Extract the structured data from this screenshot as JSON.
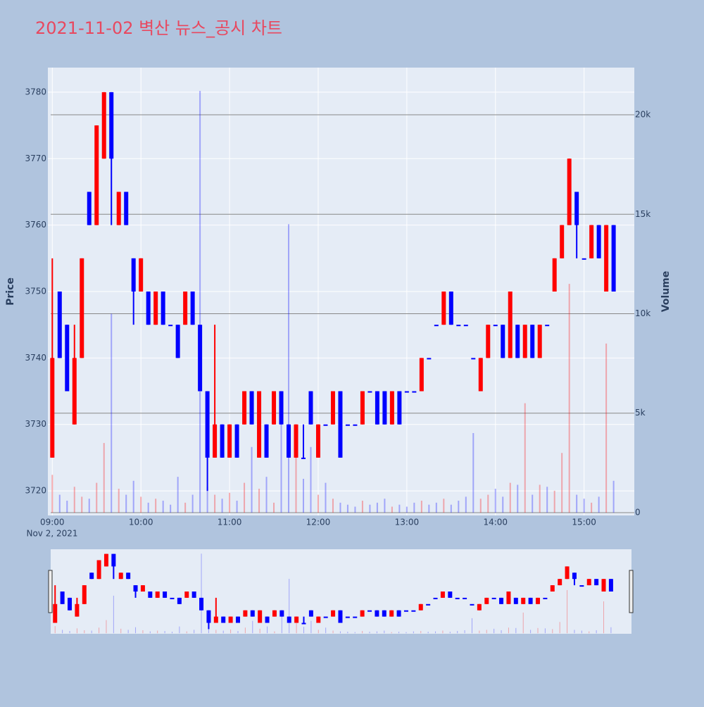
{
  "chart_data": {
    "type": "candlestick",
    "title": "2021-11-02 벽산 뉴스_공시 차트",
    "y_title": "Price",
    "y2_title": "Volume",
    "x_date_label": "Nov 2, 2021",
    "increasing_color": "#ff0000",
    "decreasing_color": "#0000ff",
    "x": [
      "09:00",
      "09:05",
      "09:10",
      "09:15",
      "09:20",
      "09:25",
      "09:30",
      "09:35",
      "09:40",
      "09:45",
      "09:50",
      "09:55",
      "10:00",
      "10:05",
      "10:10",
      "10:15",
      "10:20",
      "10:25",
      "10:30",
      "10:35",
      "10:40",
      "10:45",
      "10:50",
      "10:55",
      "11:00",
      "11:05",
      "11:10",
      "11:15",
      "11:20",
      "11:25",
      "11:30",
      "11:35",
      "11:40",
      "11:45",
      "11:50",
      "11:55",
      "12:00",
      "12:05",
      "12:10",
      "12:15",
      "12:20",
      "12:25",
      "12:30",
      "12:35",
      "12:40",
      "12:45",
      "12:50",
      "12:55",
      "13:00",
      "13:05",
      "13:10",
      "13:15",
      "13:20",
      "13:25",
      "13:30",
      "13:35",
      "13:40",
      "13:45",
      "13:50",
      "13:55",
      "14:00",
      "14:05",
      "14:10",
      "14:15",
      "14:20",
      "14:25",
      "14:30",
      "14:35",
      "14:40",
      "14:45",
      "14:50",
      "14:55",
      "15:00",
      "15:05",
      "15:10",
      "15:15",
      "15:20"
    ],
    "open": [
      3725,
      3750,
      3745,
      3730,
      3740,
      3765,
      3760,
      3770,
      3780,
      3760,
      3765,
      3755,
      3750,
      3750,
      3745,
      3750,
      3745,
      3745,
      3745,
      3750,
      3745,
      3735,
      3725,
      3730,
      3725,
      3730,
      3730,
      3735,
      3725,
      3730,
      3730,
      3735,
      3730,
      3725,
      3725,
      3735,
      3725,
      3730,
      3730,
      3735,
      3730,
      3730,
      3730,
      3735,
      3735,
      3735,
      3730,
      3735,
      3735,
      3735,
      3735,
      3740,
      3745,
      3745,
      3750,
      3745,
      3745,
      3740,
      3735,
      3740,
      3745,
      3745,
      3740,
      3745,
      3740,
      3745,
      3740,
      3745,
      3750,
      3755,
      3760,
      3765,
      3755,
      3755,
      3760,
      3750,
      3760
    ],
    "high": [
      3755,
      3750,
      3745,
      3745,
      3755,
      3765,
      3775,
      3780,
      3780,
      3765,
      3765,
      3755,
      3755,
      3750,
      3750,
      3750,
      3745,
      3745,
      3750,
      3750,
      3745,
      3735,
      3745,
      3730,
      3730,
      3730,
      3735,
      3735,
      3735,
      3730,
      3735,
      3735,
      3730,
      3730,
      3730,
      3735,
      3730,
      3730,
      3735,
      3735,
      3730,
      3730,
      3735,
      3735,
      3735,
      3735,
      3735,
      3735,
      3735,
      3735,
      3740,
      3740,
      3745,
      3750,
      3750,
      3745,
      3745,
      3740,
      3740,
      3745,
      3745,
      3745,
      3750,
      3745,
      3745,
      3745,
      3745,
      3745,
      3755,
      3760,
      3770,
      3765,
      3755,
      3760,
      3760,
      3760,
      3760
    ],
    "low": [
      3725,
      3740,
      3735,
      3730,
      3740,
      3760,
      3760,
      3770,
      3760,
      3760,
      3760,
      3745,
      3750,
      3745,
      3745,
      3745,
      3745,
      3740,
      3745,
      3745,
      3735,
      3720,
      3725,
      3725,
      3725,
      3725,
      3730,
      3730,
      3725,
      3725,
      3730,
      3730,
      3725,
      3725,
      3725,
      3730,
      3725,
      3730,
      3730,
      3725,
      3730,
      3730,
      3730,
      3735,
      3730,
      3730,
      3730,
      3730,
      3735,
      3735,
      3735,
      3740,
      3745,
      3745,
      3745,
      3745,
      3745,
      3740,
      3735,
      3740,
      3745,
      3740,
      3740,
      3740,
      3740,
      3740,
      3740,
      3745,
      3750,
      3755,
      3760,
      3755,
      3755,
      3755,
      3755,
      3750,
      3750
    ],
    "close": [
      3740,
      3740,
      3735,
      3740,
      3755,
      3760,
      3775,
      3780,
      3770,
      3765,
      3760,
      3750,
      3755,
      3745,
      3750,
      3745,
      3745,
      3740,
      3750,
      3745,
      3735,
      3725,
      3730,
      3725,
      3730,
      3725,
      3735,
      3730,
      3735,
      3725,
      3735,
      3730,
      3725,
      3730,
      3725,
      3730,
      3730,
      3730,
      3735,
      3725,
      3730,
      3730,
      3735,
      3735,
      3730,
      3730,
      3735,
      3730,
      3735,
      3735,
      3740,
      3740,
      3745,
      3750,
      3745,
      3745,
      3745,
      3740,
      3740,
      3745,
      3745,
      3740,
      3750,
      3740,
      3745,
      3740,
      3745,
      3745,
      3755,
      3760,
      3770,
      3760,
      3755,
      3760,
      3755,
      3760,
      3750
    ],
    "volume": [
      1900,
      900,
      600,
      1300,
      800,
      700,
      1500,
      3500,
      10000,
      1200,
      900,
      1600,
      800,
      500,
      700,
      600,
      400,
      1800,
      500,
      900,
      21200,
      1300,
      900,
      700,
      1000,
      600,
      1500,
      3300,
      1200,
      1800,
      500,
      5000,
      14500,
      2800,
      1700,
      3300,
      900,
      1500,
      700,
      500,
      400,
      300,
      600,
      400,
      500,
      700,
      300,
      400,
      300,
      500,
      600,
      400,
      500,
      700,
      400,
      600,
      800,
      4000,
      700,
      900,
      1200,
      800,
      1500,
      1400,
      5500,
      900,
      1400,
      1300,
      1100,
      3000,
      11500,
      900,
      700,
      500,
      800,
      8500,
      1600
    ],
    "xlim": [
      "08:57",
      "15:34"
    ],
    "xticks": [
      "09:00",
      "10:00",
      "11:00",
      "12:00",
      "13:00",
      "14:00",
      "15:00"
    ],
    "ylim": [
      3716.3,
      3783.7
    ],
    "yticks": [
      3720,
      3730,
      3740,
      3750,
      3760,
      3770,
      3780
    ],
    "y2lim": [
      -142,
      22372
    ],
    "y2ticks": [
      0,
      {
        "value": 5000,
        "label": "5k"
      },
      {
        "value": 10000,
        "label": "10k"
      },
      {
        "value": 15000,
        "label": "15k"
      },
      {
        "value": 20000,
        "label": "20k"
      }
    ],
    "grid": true,
    "rangeslider": true
  }
}
